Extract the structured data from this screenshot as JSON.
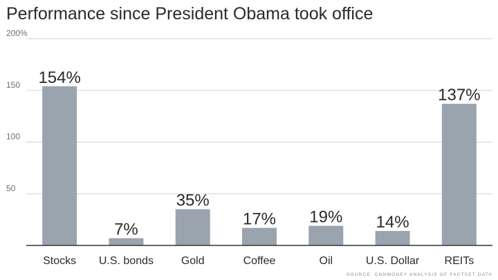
{
  "title": "Performance since President Obama took office",
  "source": "SOURCE: CNNMONEY ANALYSIS OF FACTSET DATA",
  "colors": {
    "bar": "#9aa4ae",
    "grid": "#d2d2d2",
    "axis": "#333333"
  },
  "chart_data": {
    "type": "bar",
    "title": "Performance since President Obama took office",
    "categories": [
      "Stocks",
      "U.S. bonds",
      "Gold",
      "Coffee",
      "Oil",
      "U.S. Dollar",
      "REITs"
    ],
    "values": [
      154,
      7,
      35,
      17,
      19,
      14,
      137
    ],
    "data_labels": [
      "154%",
      "7%",
      "35%",
      "17%",
      "19%",
      "14%",
      "137%"
    ],
    "ylim": [
      0,
      200
    ],
    "yticks": [
      50,
      100,
      150,
      200
    ],
    "ytick_labels": [
      "50",
      "100",
      "150",
      "200%"
    ],
    "grid": true,
    "xlabel": "",
    "ylabel": ""
  }
}
